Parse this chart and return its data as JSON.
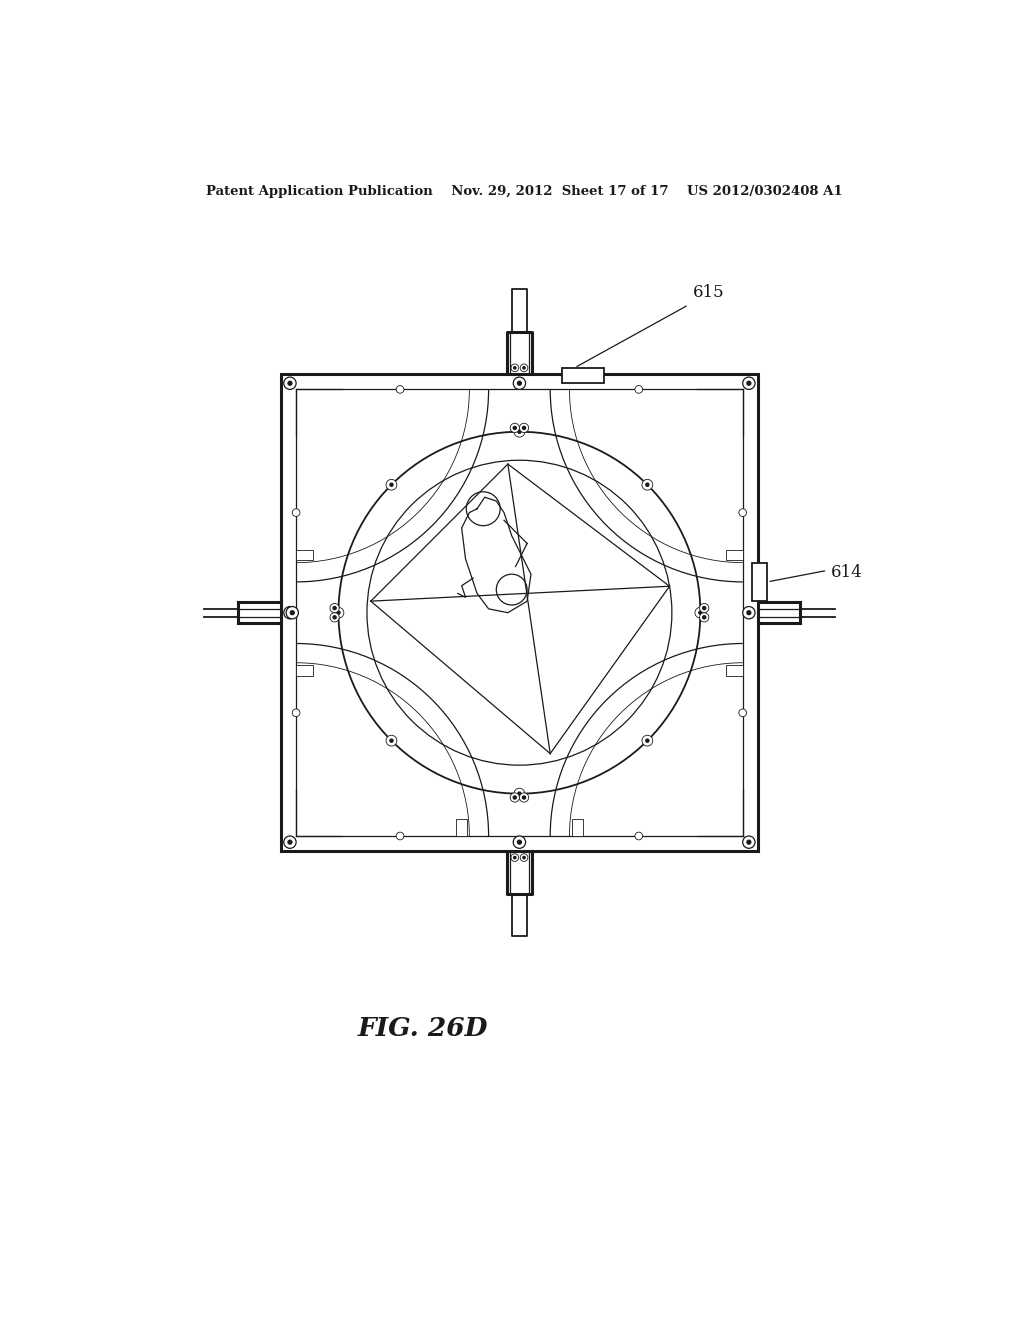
{
  "bg_color": "#ffffff",
  "line_color": "#1a1a1a",
  "header_text": "Patent Application Publication    Nov. 29, 2012  Sheet 17 of 17    US 2012/0302408 A1",
  "fig_label": "FIG. 26D",
  "ref_615": "615",
  "ref_614": "614",
  "canvas_xlim": [
    0,
    1024
  ],
  "canvas_ylim": [
    0,
    1320
  ]
}
